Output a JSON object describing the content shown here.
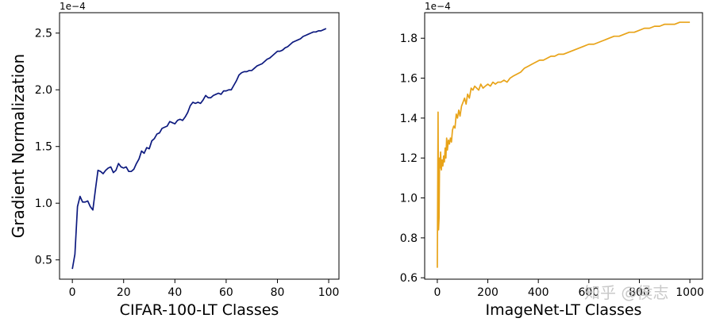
{
  "chart_data": [
    {
      "type": "line",
      "xlabel": "CIFAR-100-LT Classes",
      "ylabel": "Gradient Normalization",
      "scale_note": "1e−4",
      "xlim": [
        -5,
        104
      ],
      "ylim": [
        0.33,
        2.68
      ],
      "xticks": [
        0,
        20,
        40,
        60,
        80,
        100
      ],
      "xtick_labels": [
        "0",
        "20",
        "40",
        "60",
        "80",
        "100"
      ],
      "yticks": [
        0.5,
        1.0,
        1.5,
        2.0,
        2.5
      ],
      "ytick_labels": [
        "0.5",
        "1.0",
        "1.5",
        "2.0",
        "2.5"
      ],
      "grid": false,
      "series": [
        {
          "color": "#0d1a7f",
          "x": [
            0,
            1,
            2,
            3,
            4,
            5,
            6,
            7,
            8,
            9,
            10,
            11,
            12,
            13,
            14,
            15,
            16,
            17,
            18,
            19,
            20,
            21,
            22,
            23,
            24,
            25,
            26,
            27,
            28,
            29,
            30,
            31,
            32,
            33,
            34,
            35,
            36,
            37,
            38,
            39,
            40,
            41,
            42,
            43,
            44,
            45,
            46,
            47,
            48,
            49,
            50,
            51,
            52,
            53,
            54,
            55,
            56,
            57,
            58,
            59,
            60,
            61,
            62,
            63,
            64,
            65,
            66,
            67,
            68,
            69,
            70,
            71,
            72,
            73,
            74,
            75,
            76,
            77,
            78,
            79,
            80,
            81,
            82,
            83,
            84,
            85,
            86,
            87,
            88,
            89,
            90,
            91,
            92,
            93,
            94,
            95,
            96,
            97,
            98,
            99
          ],
          "values": [
            0.42,
            0.55,
            0.97,
            1.06,
            1.01,
            1.01,
            1.02,
            0.97,
            0.94,
            1.12,
            1.29,
            1.28,
            1.26,
            1.29,
            1.31,
            1.32,
            1.27,
            1.29,
            1.35,
            1.32,
            1.31,
            1.32,
            1.28,
            1.28,
            1.3,
            1.35,
            1.39,
            1.46,
            1.44,
            1.49,
            1.48,
            1.55,
            1.57,
            1.61,
            1.62,
            1.66,
            1.67,
            1.68,
            1.72,
            1.71,
            1.7,
            1.73,
            1.74,
            1.73,
            1.76,
            1.8,
            1.86,
            1.89,
            1.88,
            1.89,
            1.88,
            1.91,
            1.95,
            1.93,
            1.93,
            1.95,
            1.96,
            1.97,
            1.96,
            1.99,
            1.99,
            2.0,
            2.0,
            2.04,
            2.08,
            2.13,
            2.15,
            2.16,
            2.16,
            2.17,
            2.17,
            2.19,
            2.21,
            2.22,
            2.23,
            2.25,
            2.27,
            2.28,
            2.3,
            2.32,
            2.34,
            2.34,
            2.35,
            2.37,
            2.38,
            2.4,
            2.42,
            2.43,
            2.44,
            2.45,
            2.47,
            2.48,
            2.49,
            2.5,
            2.51,
            2.51,
            2.52,
            2.52,
            2.53,
            2.54
          ]
        }
      ]
    },
    {
      "type": "line",
      "xlabel": "ImageNet-LT Classes",
      "ylabel": "",
      "scale_note": "1e−4",
      "xlim": [
        -50,
        1050
      ],
      "ylim": [
        0.593,
        1.928
      ],
      "xticks": [
        0,
        200,
        400,
        600,
        800,
        1000
      ],
      "xtick_labels": [
        "0",
        "200",
        "400",
        "600",
        "800",
        "1000"
      ],
      "yticks": [
        0.6,
        0.8,
        1.0,
        1.2,
        1.4,
        1.6,
        1.8
      ],
      "ytick_labels": [
        "0.6",
        "0.8",
        "1.0",
        "1.2",
        "1.4",
        "1.6",
        "1.8"
      ],
      "grid": false,
      "series": [
        {
          "color": "#e8a318",
          "x": [
            0,
            3,
            5,
            7,
            9,
            11,
            13,
            16,
            19,
            22,
            25,
            28,
            31,
            34,
            37,
            40,
            44,
            48,
            52,
            56,
            60,
            65,
            70,
            75,
            80,
            85,
            90,
            96,
            102,
            108,
            114,
            120,
            127,
            134,
            141,
            148,
            156,
            164,
            172,
            181,
            190,
            200,
            210,
            220,
            230,
            240,
            252,
            264,
            276,
            288,
            300,
            315,
            330,
            345,
            360,
            375,
            390,
            405,
            420,
            435,
            450,
            465,
            480,
            500,
            520,
            540,
            560,
            580,
            600,
            620,
            640,
            660,
            680,
            700,
            720,
            740,
            760,
            780,
            800,
            820,
            840,
            860,
            880,
            900,
            920,
            940,
            960,
            980,
            1000
          ],
          "values": [
            0.65,
            1.43,
            0.84,
            0.9,
            1.2,
            1.15,
            1.23,
            1.14,
            1.19,
            1.16,
            1.21,
            1.18,
            1.25,
            1.2,
            1.3,
            1.24,
            1.29,
            1.27,
            1.3,
            1.28,
            1.34,
            1.36,
            1.35,
            1.42,
            1.4,
            1.44,
            1.41,
            1.46,
            1.48,
            1.5,
            1.47,
            1.52,
            1.5,
            1.55,
            1.54,
            1.56,
            1.55,
            1.54,
            1.57,
            1.55,
            1.56,
            1.57,
            1.56,
            1.58,
            1.57,
            1.58,
            1.58,
            1.59,
            1.58,
            1.6,
            1.61,
            1.62,
            1.63,
            1.65,
            1.66,
            1.67,
            1.68,
            1.69,
            1.69,
            1.7,
            1.71,
            1.71,
            1.72,
            1.72,
            1.73,
            1.74,
            1.75,
            1.76,
            1.77,
            1.77,
            1.78,
            1.79,
            1.8,
            1.81,
            1.81,
            1.82,
            1.83,
            1.83,
            1.84,
            1.85,
            1.85,
            1.86,
            1.86,
            1.87,
            1.87,
            1.87,
            1.88,
            1.88,
            1.88
          ]
        }
      ]
    }
  ],
  "watermark": "知乎 @侯志"
}
